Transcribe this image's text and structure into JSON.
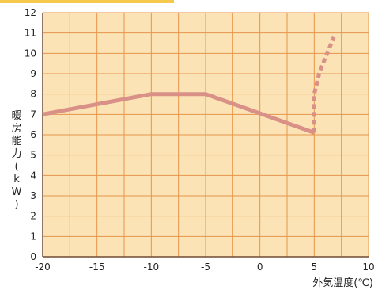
{
  "chart_data": {
    "type": "line",
    "xlabel": "外気温度(℃)",
    "ylabel": "暖房能力(kW)",
    "xlim": [
      -20,
      10
    ],
    "ylim": [
      0,
      12
    ],
    "x_ticks": [
      -20,
      -15,
      -10,
      -5,
      0,
      5,
      10
    ],
    "y_ticks": [
      0,
      1,
      2,
      3,
      4,
      5,
      6,
      7,
      8,
      9,
      10,
      11,
      12
    ],
    "grid": true,
    "series": [
      {
        "style": "solid",
        "points": [
          [
            -20,
            7.0
          ],
          [
            -10,
            8.0
          ],
          [
            -5,
            8.0
          ],
          [
            5,
            6.1
          ]
        ]
      },
      {
        "style": "dashed",
        "points": [
          [
            5,
            6.1
          ],
          [
            5.0,
            8.0
          ],
          [
            5.5,
            9.1
          ],
          [
            6.8,
            10.8
          ]
        ]
      }
    ]
  },
  "colors": {
    "background": "#ffffff",
    "plot_background": "#fbe3b6",
    "grid": "#e6954a",
    "axis": "#6f4a34",
    "line": "#d99087",
    "top_band": "#f7c84e"
  }
}
